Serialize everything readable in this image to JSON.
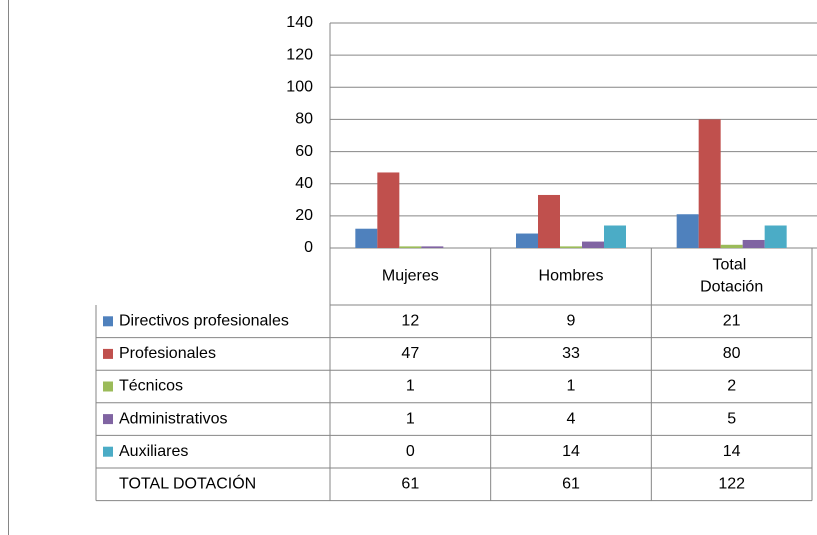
{
  "chart_data": {
    "type": "bar",
    "categories": [
      "Mujeres",
      "Hombres",
      "Total Dotación"
    ],
    "series": [
      {
        "name": "Directivos profesionales",
        "color": "#4f81bd",
        "values": [
          12,
          9,
          21
        ]
      },
      {
        "name": "Profesionales",
        "color": "#c0504d",
        "values": [
          47,
          33,
          80
        ]
      },
      {
        "name": "Técnicos",
        "color": "#9bbb59",
        "values": [
          1,
          1,
          2
        ]
      },
      {
        "name": "Administrativos",
        "color": "#8064a2",
        "values": [
          1,
          4,
          5
        ]
      },
      {
        "name": "Auxiliares",
        "color": "#4bacc6",
        "values": [
          0,
          14,
          14
        ]
      }
    ],
    "totals": {
      "name": "TOTAL DOTACIÓN",
      "values": [
        61,
        61,
        122
      ]
    },
    "ylim": [
      0,
      140
    ],
    "yticks": [
      0,
      20,
      40,
      60,
      80,
      100,
      120,
      140
    ],
    "grid": true
  }
}
